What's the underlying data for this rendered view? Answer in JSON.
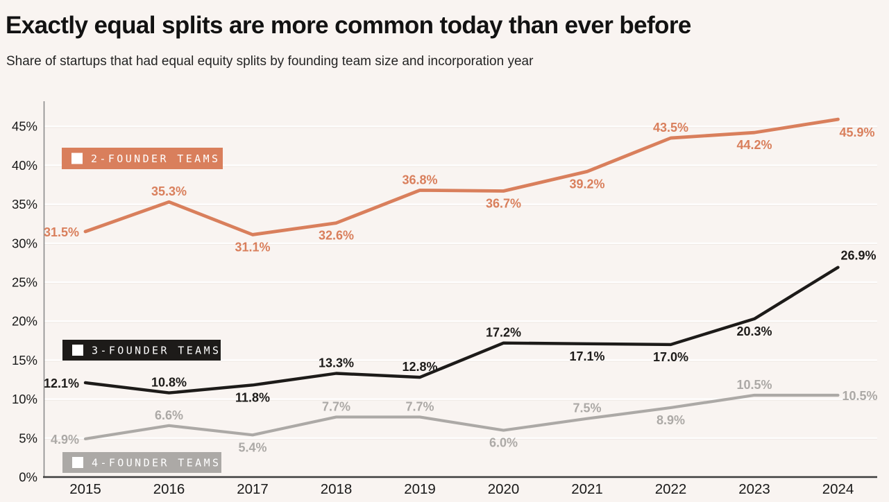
{
  "chart_data": {
    "type": "line",
    "title": "Exactly equal splits are more common today than ever before",
    "subtitle": "Share of startups that had equal equity splits by founding team size and incorporation year",
    "x_labels": [
      "2015",
      "2016",
      "2017",
      "2018",
      "2019",
      "2020",
      "2021",
      "2022",
      "2023",
      "2024"
    ],
    "x_values": [
      2015,
      2016,
      2017,
      2018,
      2019,
      2020,
      2021,
      2022,
      2023,
      2024
    ],
    "xlabel": "",
    "ylabel": "",
    "y_tick_labels": [
      "0%",
      "5%",
      "10%",
      "15%",
      "20%",
      "25%",
      "30%",
      "35%",
      "40%",
      "45%"
    ],
    "y_tick_values": [
      0,
      5,
      10,
      15,
      20,
      25,
      30,
      35,
      40,
      45
    ],
    "ylim": [
      0,
      48
    ],
    "grid": "horizontal",
    "legend_position": "inline-left-over-plot",
    "series": [
      {
        "name": "2-FOUNDER TEAMS",
        "color": "#D97F5C",
        "values": [
          31.5,
          35.3,
          31.1,
          32.6,
          36.8,
          36.7,
          39.2,
          43.5,
          44.2,
          45.9
        ],
        "labels": [
          "31.5%",
          "35.3%",
          "31.1%",
          "32.6%",
          "36.8%",
          "36.7%",
          "39.2%",
          "43.5%",
          "44.2%",
          "45.9%"
        ]
      },
      {
        "name": "3-FOUNDER TEAMS",
        "color": "#1D1B19",
        "values": [
          12.1,
          10.8,
          11.8,
          13.3,
          12.8,
          17.2,
          17.1,
          17.0,
          20.3,
          26.9
        ],
        "labels": [
          "12.1%",
          "10.8%",
          "11.8%",
          "13.3%",
          "12.8%",
          "17.2%",
          "17.1%",
          "17.0%",
          "20.3%",
          "26.9%"
        ]
      },
      {
        "name": "4-FOUNDER TEAMS",
        "color": "#ACA9A6",
        "values": [
          4.9,
          6.6,
          5.4,
          7.7,
          7.7,
          6.0,
          7.5,
          8.9,
          10.5,
          10.5
        ],
        "labels": [
          "4.9%",
          "6.6%",
          "5.4%",
          "7.7%",
          "7.7%",
          "6.0%",
          "7.5%",
          "8.9%",
          "10.5%",
          "10.5%"
        ]
      }
    ],
    "colors": {
      "background": "#F9F4F1",
      "gridline": "#FFFFFF",
      "gridline_shadow": "#EFE7E3",
      "x_axis": "#3C3C3C",
      "y_spine": "#8A8A8A",
      "tick_text": "#191919",
      "legend_text": "#FFFFFF"
    }
  }
}
